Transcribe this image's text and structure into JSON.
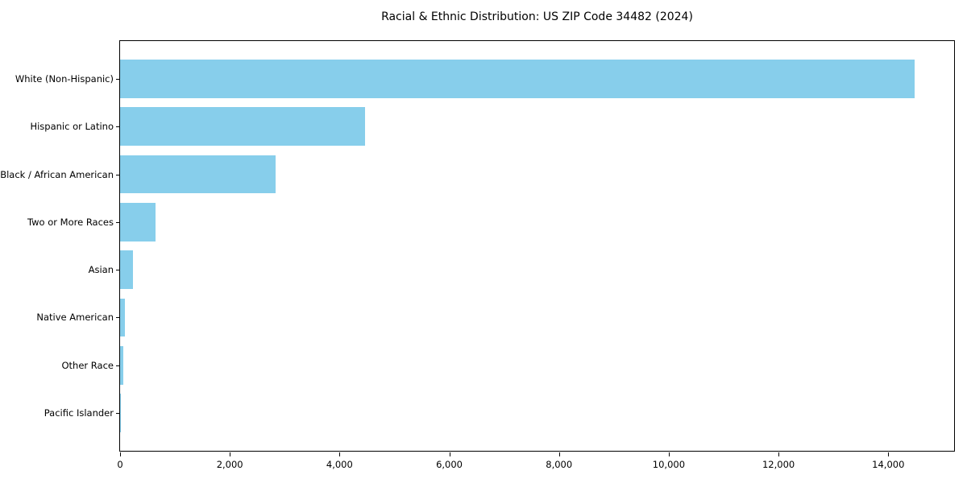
{
  "chart_data": {
    "type": "bar",
    "orientation": "horizontal",
    "title": "Racial & Ethnic Distribution: US ZIP Code 34482 (2024)",
    "categories": [
      "White (Non-Hispanic)",
      "Hispanic or Latino",
      "Black / African American",
      "Two or More Races",
      "Asian",
      "Native American",
      "Other Race",
      "Pacific Islander"
    ],
    "values": [
      14480,
      4460,
      2840,
      650,
      235,
      90,
      60,
      10
    ],
    "xlabel": "",
    "ylabel": "",
    "xlim": [
      0,
      15200
    ],
    "xticks": [
      0,
      2000,
      4000,
      6000,
      8000,
      10000,
      12000,
      14000
    ],
    "xtick_labels": [
      "0",
      "2,000",
      "4,000",
      "6,000",
      "8,000",
      "10,000",
      "12,000",
      "14,000"
    ],
    "bar_color": "#87CEEB",
    "frame_color": "#000000",
    "grid": false,
    "legend": "none"
  }
}
